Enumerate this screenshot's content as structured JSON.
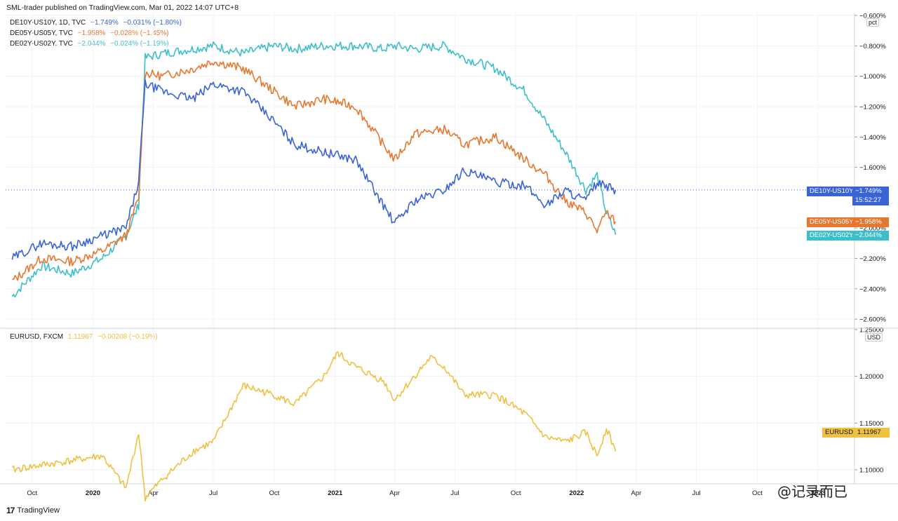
{
  "header": {
    "publish_text": "SML-trader published on TradingView.com, Mar 01, 2022 14:07 UTC+8"
  },
  "colors": {
    "de10": "#3a63d6",
    "de05": "#e8772e",
    "de02": "#3cbfcb",
    "eurusd": "#f0c040",
    "grid": "#f0f3fa"
  },
  "legend_top": [
    {
      "name": "DE10Y-US10Y, 1D, TVC",
      "value": "−1.749%",
      "change": "−0.031% (−1.80%)"
    },
    {
      "name": "DE05Y-US05Y, TVC",
      "value": "−1.958%",
      "change": "−0.028% (−1.45%)"
    },
    {
      "name": "DE02Y-US02Y, TVC",
      "value": "−2.044%",
      "change": "−0.024% (−1.19%)"
    }
  ],
  "legend_bottom": {
    "name": "EURUSD, FXCM",
    "value": "1.11967",
    "change": "−0.00208 (−0.19%)"
  },
  "top_axis": {
    "unit": "pct",
    "ticks": [
      "−0.600%",
      "−0.800%",
      "−1.000%",
      "−1.200%",
      "−1.400%",
      "−1.600%",
      "−2.000%",
      "−2.200%",
      "−2.400%",
      "−2.600%"
    ]
  },
  "bottom_axis": {
    "unit": "USD",
    "ticks": [
      "1.25000",
      "1.20000",
      "1.15000",
      "1.10000"
    ]
  },
  "time_axis": [
    "Oct",
    "2020",
    "Apr",
    "Jul",
    "Oct",
    "2021",
    "Apr",
    "Jul",
    "Oct",
    "2022",
    "Apr",
    "Jul",
    "Oct",
    "2023"
  ],
  "tags": {
    "de10_name": "DE10Y-US10Y",
    "de10_value": "−1.749%",
    "de10_time": "15:52:27",
    "de05_name": "DE05Y-US05Y",
    "de05_value": "−1.958%",
    "de02_name": "DE02Y-US02Y",
    "de02_value": "−2.044%",
    "eurusd_name": "EURUSD",
    "eurusd_value": "1.11967"
  },
  "footer": {
    "brand": "TradingView",
    "watermark": "@记录而已"
  },
  "chart_data": [
    {
      "type": "line",
      "xlabel": "",
      "ylabel": "",
      "ylim": [
        -2.65,
        -0.6
      ],
      "grid": true,
      "legend": "top-left",
      "x": [
        "2019-09-01",
        "2019-10-15",
        "2019-12-01",
        "2020-01-15",
        "2020-02-20",
        "2020-03-10",
        "2020-03-20",
        "2020-04-15",
        "2020-06-01",
        "2020-07-01",
        "2020-08-15",
        "2020-10-01",
        "2020-11-01",
        "2020-12-15",
        "2021-02-01",
        "2021-03-15",
        "2021-04-01",
        "2021-05-01",
        "2021-06-15",
        "2021-07-15",
        "2021-09-01",
        "2021-10-15",
        "2021-11-15",
        "2021-12-15",
        "2022-01-15",
        "2022-02-01",
        "2022-02-15",
        "2022-03-01"
      ],
      "series": [
        {
          "name": "DE10Y-US10Y",
          "values": [
            -2.2,
            -2.1,
            -2.12,
            -2.05,
            -2.0,
            -1.7,
            -1.05,
            -1.1,
            -1.15,
            -1.05,
            -1.1,
            -1.3,
            -1.45,
            -1.5,
            -1.55,
            -1.85,
            -1.97,
            -1.82,
            -1.75,
            -1.62,
            -1.7,
            -1.72,
            -1.85,
            -1.75,
            -1.82,
            -1.7,
            -1.73,
            -1.749
          ]
        },
        {
          "name": "DE05Y-US05Y",
          "values": [
            -2.35,
            -2.2,
            -2.22,
            -2.15,
            -2.05,
            -1.8,
            -0.98,
            -1.0,
            -0.95,
            -0.9,
            -0.95,
            -1.1,
            -1.2,
            -1.15,
            -1.2,
            -1.45,
            -1.55,
            -1.38,
            -1.35,
            -1.45,
            -1.4,
            -1.55,
            -1.65,
            -1.82,
            -1.9,
            -2.02,
            -1.9,
            -1.958
          ]
        },
        {
          "name": "DE02Y-US02Y",
          "values": [
            -2.45,
            -2.25,
            -2.3,
            -2.2,
            -2.05,
            -1.85,
            -0.88,
            -0.85,
            -0.82,
            -0.8,
            -0.85,
            -0.8,
            -0.82,
            -0.8,
            -0.8,
            -0.82,
            -0.8,
            -0.82,
            -0.8,
            -0.88,
            -0.95,
            -1.1,
            -1.3,
            -1.5,
            -1.75,
            -1.65,
            -1.9,
            -2.044
          ]
        }
      ]
    },
    {
      "type": "line",
      "xlabel": "",
      "ylabel": "",
      "ylim": [
        1.085,
        1.25
      ],
      "grid": true,
      "legend": "top-left",
      "x": [
        "2019-09-01",
        "2019-10-15",
        "2019-12-01",
        "2020-01-15",
        "2020-02-20",
        "2020-03-10",
        "2020-03-20",
        "2020-04-15",
        "2020-06-01",
        "2020-07-01",
        "2020-08-15",
        "2020-10-01",
        "2020-11-01",
        "2020-12-15",
        "2021-01-05",
        "2021-02-01",
        "2021-03-15",
        "2021-04-01",
        "2021-05-01",
        "2021-05-25",
        "2021-06-15",
        "2021-07-15",
        "2021-09-01",
        "2021-10-15",
        "2021-11-15",
        "2021-12-15",
        "2022-01-15",
        "2022-02-01",
        "2022-02-15",
        "2022-03-01"
      ],
      "series": [
        {
          "name": "EURUSD",
          "values": [
            1.1,
            1.105,
            1.11,
            1.115,
            1.08,
            1.14,
            1.07,
            1.09,
            1.12,
            1.13,
            1.19,
            1.18,
            1.17,
            1.2,
            1.225,
            1.21,
            1.195,
            1.175,
            1.2,
            1.22,
            1.21,
            1.18,
            1.18,
            1.16,
            1.135,
            1.13,
            1.14,
            1.115,
            1.145,
            1.11967
          ]
        }
      ]
    }
  ]
}
